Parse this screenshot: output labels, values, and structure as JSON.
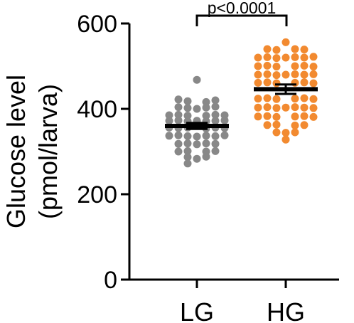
{
  "chart_data": {
    "type": "scatter",
    "ylabel_lines": [
      "Glucose level",
      "(pmol/larva)"
    ],
    "ylim": [
      0,
      600
    ],
    "yticks": [
      0,
      200,
      400,
      600
    ],
    "categories": [
      "LG",
      "HG"
    ],
    "grid": false,
    "legend": "none",
    "annotation": "p<0.0001",
    "series": [
      {
        "category": "LG",
        "color": "#888888",
        "mean": 360,
        "sem": 7,
        "points": [
          {
            "x": 0,
            "y": 468
          },
          {
            "x": -2,
            "y": 422
          },
          {
            "x": -1,
            "y": 418
          },
          {
            "x": 1,
            "y": 416
          },
          {
            "x": 2,
            "y": 420
          },
          {
            "x": -2,
            "y": 404
          },
          {
            "x": -1,
            "y": 402
          },
          {
            "x": 0,
            "y": 400
          },
          {
            "x": 1,
            "y": 403
          },
          {
            "x": 2,
            "y": 405
          },
          {
            "x": -3,
            "y": 385
          },
          {
            "x": -2,
            "y": 386
          },
          {
            "x": -1,
            "y": 384
          },
          {
            "x": 1,
            "y": 384
          },
          {
            "x": 2,
            "y": 386
          },
          {
            "x": 3,
            "y": 385
          },
          {
            "x": -3,
            "y": 372
          },
          {
            "x": -2,
            "y": 373
          },
          {
            "x": -1,
            "y": 371
          },
          {
            "x": 0,
            "y": 372
          },
          {
            "x": 1,
            "y": 371
          },
          {
            "x": 2,
            "y": 372
          },
          {
            "x": 3,
            "y": 373
          },
          {
            "x": -3,
            "y": 356
          },
          {
            "x": -2,
            "y": 355
          },
          {
            "x": -1,
            "y": 356
          },
          {
            "x": 1,
            "y": 354
          },
          {
            "x": 2,
            "y": 356
          },
          {
            "x": 3,
            "y": 355
          },
          {
            "x": -3,
            "y": 337
          },
          {
            "x": -2,
            "y": 338
          },
          {
            "x": -1,
            "y": 336
          },
          {
            "x": 0,
            "y": 335
          },
          {
            "x": 1,
            "y": 337
          },
          {
            "x": 2,
            "y": 336
          },
          {
            "x": 3,
            "y": 338
          },
          {
            "x": -2,
            "y": 318
          },
          {
            "x": -1,
            "y": 319
          },
          {
            "x": 0,
            "y": 317
          },
          {
            "x": 1,
            "y": 319
          },
          {
            "x": 2,
            "y": 318
          },
          {
            "x": -2,
            "y": 300
          },
          {
            "x": -1,
            "y": 301
          },
          {
            "x": 1,
            "y": 300
          },
          {
            "x": 2,
            "y": 301
          },
          {
            "x": -1,
            "y": 287
          },
          {
            "x": 0,
            "y": 283
          },
          {
            "x": 1,
            "y": 288
          },
          {
            "x": -1,
            "y": 272
          }
        ]
      },
      {
        "category": "HG",
        "color": "#f28a30",
        "mean": 446,
        "sem": 11,
        "points": [
          {
            "x": 0,
            "y": 556
          },
          {
            "x": -2,
            "y": 540
          },
          {
            "x": -1,
            "y": 538
          },
          {
            "x": 1,
            "y": 540
          },
          {
            "x": 2,
            "y": 539
          },
          {
            "x": -3,
            "y": 520
          },
          {
            "x": -2,
            "y": 521
          },
          {
            "x": -1,
            "y": 519
          },
          {
            "x": 0,
            "y": 520
          },
          {
            "x": 1,
            "y": 521
          },
          {
            "x": 2,
            "y": 520
          },
          {
            "x": 3,
            "y": 522
          },
          {
            "x": -3,
            "y": 500
          },
          {
            "x": -2,
            "y": 501
          },
          {
            "x": -1,
            "y": 499
          },
          {
            "x": 1,
            "y": 500
          },
          {
            "x": 2,
            "y": 501
          },
          {
            "x": 3,
            "y": 499
          },
          {
            "x": -3,
            "y": 480
          },
          {
            "x": -2,
            "y": 481
          },
          {
            "x": -1,
            "y": 479
          },
          {
            "x": 0,
            "y": 480
          },
          {
            "x": 1,
            "y": 481
          },
          {
            "x": 2,
            "y": 480
          },
          {
            "x": 3,
            "y": 481
          },
          {
            "x": -3,
            "y": 461
          },
          {
            "x": -2,
            "y": 462
          },
          {
            "x": -1,
            "y": 460
          },
          {
            "x": 1,
            "y": 461
          },
          {
            "x": 2,
            "y": 462
          },
          {
            "x": 3,
            "y": 460
          },
          {
            "x": -3,
            "y": 424
          },
          {
            "x": -2,
            "y": 425
          },
          {
            "x": -1,
            "y": 423
          },
          {
            "x": 1,
            "y": 424
          },
          {
            "x": 2,
            "y": 425
          },
          {
            "x": 3,
            "y": 423
          },
          {
            "x": -3,
            "y": 403
          },
          {
            "x": -2,
            "y": 404
          },
          {
            "x": -1,
            "y": 402
          },
          {
            "x": 0,
            "y": 403
          },
          {
            "x": 1,
            "y": 404
          },
          {
            "x": 2,
            "y": 403
          },
          {
            "x": 3,
            "y": 402
          },
          {
            "x": -3,
            "y": 382
          },
          {
            "x": -2,
            "y": 383
          },
          {
            "x": -1,
            "y": 381
          },
          {
            "x": 1,
            "y": 382
          },
          {
            "x": 2,
            "y": 383
          },
          {
            "x": 3,
            "y": 381
          },
          {
            "x": -2,
            "y": 362
          },
          {
            "x": -1,
            "y": 363
          },
          {
            "x": 1,
            "y": 361
          },
          {
            "x": 2,
            "y": 362
          },
          {
            "x": -1,
            "y": 345
          },
          {
            "x": 0,
            "y": 344
          },
          {
            "x": 1,
            "y": 345
          },
          {
            "x": 0,
            "y": 328
          }
        ]
      }
    ]
  }
}
